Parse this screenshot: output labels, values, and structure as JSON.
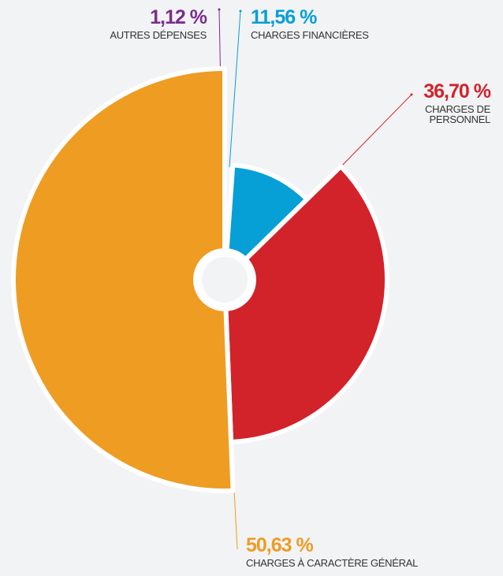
{
  "chart_data": {
    "type": "pie",
    "categories": [
      "AUTRES DÉPENSES",
      "CHARGES FINANCIÈRES",
      "CHARGES DE PERSONNEL",
      "CHARGES À CARACTÈRE GÉNÉRAL"
    ],
    "values": [
      1.12,
      11.56,
      36.7,
      50.63
    ],
    "value_labels": [
      "1,12 %",
      "11,56 %",
      "36,70 %",
      "50,63 %"
    ],
    "colors": [
      "#7b2d8e",
      "#069fd6",
      "#d2232a",
      "#ee9c22"
    ]
  }
}
